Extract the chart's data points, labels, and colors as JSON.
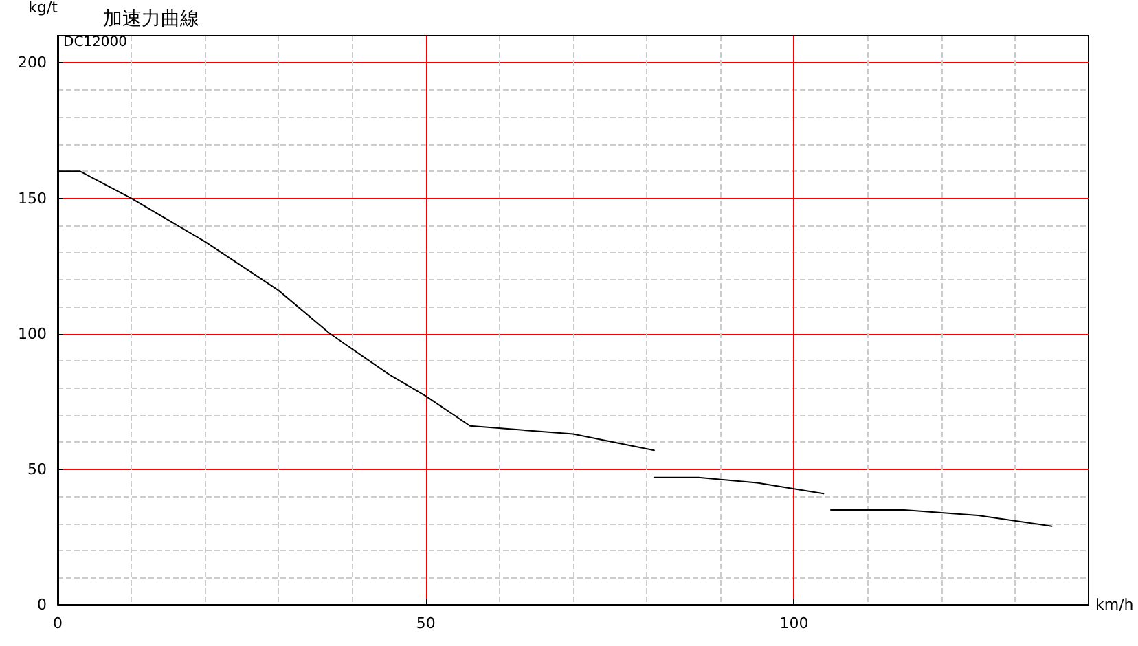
{
  "chart_data": {
    "type": "line",
    "title": "加速力曲線",
    "xlabel": "km/h",
    "ylabel": "kg/t",
    "annotations": [
      "DC12000"
    ],
    "series": [
      {
        "color": "#000000",
        "x": [
          0,
          3,
          10,
          20,
          30,
          37,
          45,
          50,
          56,
          70,
          81
        ],
        "values": [
          160,
          160,
          150,
          134,
          116,
          100,
          85,
          77,
          66,
          63,
          57
        ]
      },
      {
        "color": "#000000",
        "x": [
          81,
          87,
          95,
          104
        ],
        "values": [
          47,
          47,
          45,
          41
        ]
      },
      {
        "color": "#000000",
        "x": [
          105,
          115,
          125,
          135
        ],
        "values": [
          35,
          35,
          33,
          29
        ]
      }
    ],
    "xlim": [
      0,
      140
    ],
    "xticks": [
      0,
      {
        "value": 10,
        "label": null
      },
      {
        "value": 20,
        "label": null
      },
      {
        "value": 30,
        "label": null
      },
      {
        "value": 40,
        "label": null
      },
      50,
      {
        "value": 60,
        "label": null
      },
      {
        "value": 70,
        "label": null
      },
      {
        "value": 80,
        "label": null
      },
      {
        "value": 90,
        "label": null
      },
      100,
      {
        "value": 110,
        "label": null
      },
      {
        "value": 120,
        "label": null
      },
      {
        "value": 130,
        "label": null
      }
    ],
    "ylim": [
      0,
      210
    ],
    "yticks": [
      0,
      {
        "value": 10,
        "label": null
      },
      {
        "value": 20,
        "label": null
      },
      {
        "value": 30,
        "label": null
      },
      {
        "value": 40,
        "label": null
      },
      50,
      {
        "value": 60,
        "label": null
      },
      {
        "value": 70,
        "label": null
      },
      {
        "value": 80,
        "label": null
      },
      {
        "value": 90,
        "label": null
      },
      100,
      {
        "value": 110,
        "label": null
      },
      {
        "value": 120,
        "label": null
      },
      {
        "value": 130,
        "label": null
      },
      {
        "value": 140,
        "label": null
      },
      150,
      {
        "value": 160,
        "label": null
      },
      {
        "value": 170,
        "label": null
      },
      {
        "value": 180,
        "label": null
      },
      {
        "value": 190,
        "label": null
      },
      200
    ],
    "grid": true,
    "marker": "none",
    "line_style": "solid"
  }
}
